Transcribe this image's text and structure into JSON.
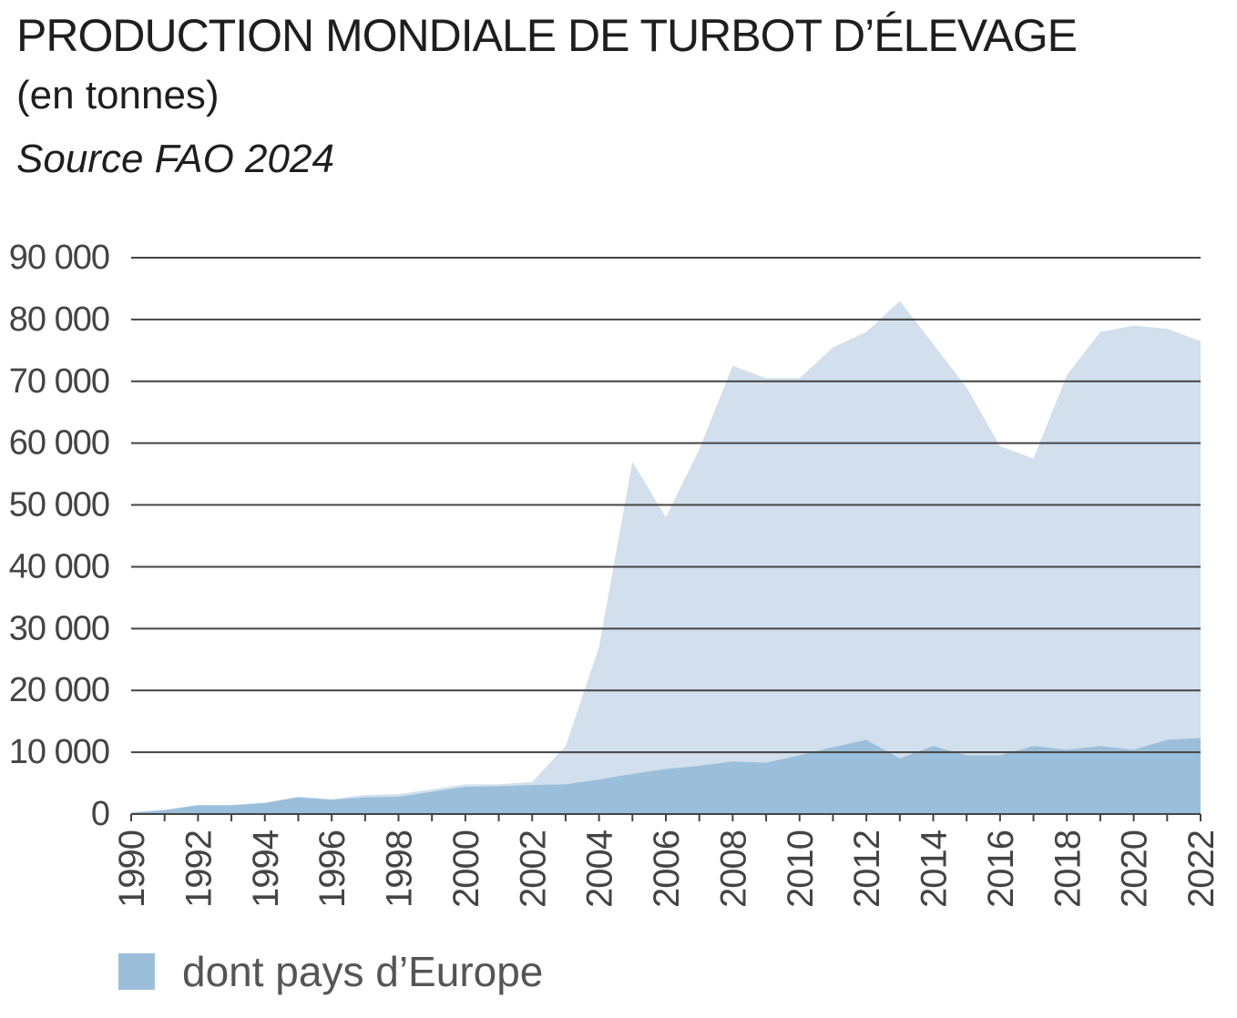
{
  "header": {
    "title": "PRODUCTION MONDIALE DE TURBOT D’ÉLEVAGE",
    "subtitle": "(en tonnes)",
    "source": "Source FAO 2024"
  },
  "legend": {
    "label": "dont pays d’Europe",
    "color": "#9bbfdb"
  },
  "colors": {
    "world_area": "#d2dfec",
    "europe_area": "#9bbfdb",
    "grid": "#444444",
    "tick_text": "#444444"
  },
  "chart_data": {
    "type": "area",
    "x": [
      1990,
      1991,
      1992,
      1993,
      1994,
      1995,
      1996,
      1997,
      1998,
      1999,
      2000,
      2001,
      2002,
      2003,
      2004,
      2005,
      2006,
      2007,
      2008,
      2009,
      2010,
      2011,
      2012,
      2013,
      2014,
      2015,
      2016,
      2017,
      2018,
      2019,
      2020,
      2021,
      2022
    ],
    "series": [
      {
        "values": [
          300,
          700,
          1500,
          1500,
          1800,
          2800,
          2400,
          3100,
          3200,
          4000,
          4800,
          4800,
          5200,
          11000,
          27000,
          57000,
          48000,
          59000,
          72500,
          70500,
          70500,
          75500,
          78000,
          83000,
          76000,
          69000,
          59500,
          57500,
          71000,
          78000,
          79000,
          78500,
          76500
        ]
      },
      {
        "name": "dont pays d’Europe",
        "values": [
          200,
          600,
          1400,
          1400,
          1800,
          2700,
          2300,
          2700,
          2800,
          3600,
          4400,
          4500,
          4700,
          4800,
          5600,
          6500,
          7300,
          7800,
          8500,
          8300,
          9500,
          10800,
          12000,
          9000,
          11000,
          9500,
          9500,
          11000,
          10400,
          11000,
          10400,
          12000,
          12300
        ]
      }
    ],
    "yticks": [
      "0",
      "10 000",
      "20 000",
      "30 000",
      "40 000",
      "50 000",
      "60 000",
      "70 000",
      "80 000",
      "90 000"
    ],
    "xticks": [
      "1990",
      "1992",
      "1994",
      "1996",
      "1998",
      "2000",
      "2002",
      "2004",
      "2006",
      "2008",
      "2010",
      "2012",
      "2014",
      "2016",
      "2018",
      "2020",
      "2022"
    ],
    "ylim": [
      0,
      90000
    ],
    "xlim": [
      1990,
      2022
    ],
    "grid": "horizontal",
    "legend_position": "bottom-left"
  }
}
